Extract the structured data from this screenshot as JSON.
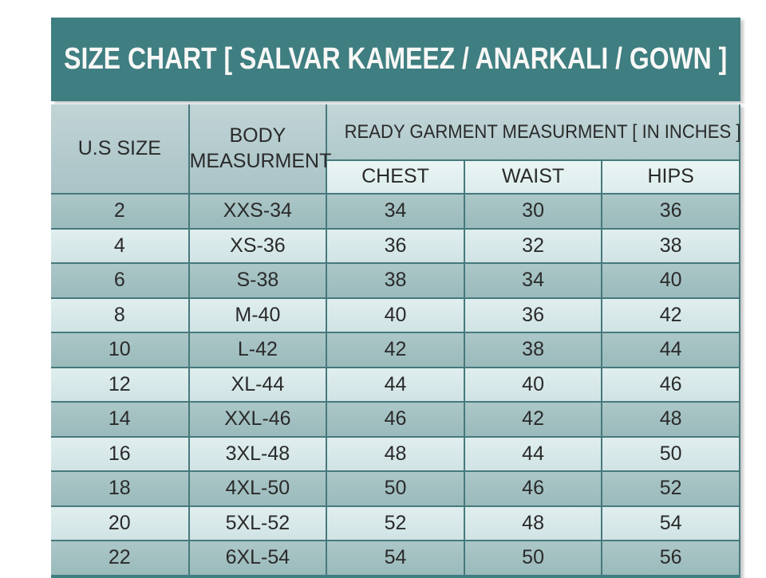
{
  "header": {
    "title": "SIZE CHART [ SALVAR KAMEEZ / ANARKALI / GOWN ]"
  },
  "chart_data": {
    "type": "table",
    "title": "SIZE CHART [ SALVAR KAMEEZ / ANARKALI / GOWN ]",
    "group_header": "READY GARMENT MEASURMENT [ IN INCHES ]",
    "columns": [
      "U.S SIZE",
      "BODY MEASURMENT",
      "CHEST",
      "WAIST",
      "HIPS"
    ],
    "rows": [
      [
        2,
        "XXS-34",
        34,
        30,
        36
      ],
      [
        4,
        "XS-36",
        36,
        32,
        38
      ],
      [
        6,
        "S-38",
        38,
        34,
        40
      ],
      [
        8,
        "M-40",
        40,
        36,
        42
      ],
      [
        10,
        "L-42",
        42,
        38,
        44
      ],
      [
        12,
        "XL-44",
        44,
        40,
        46
      ],
      [
        14,
        "XXL-46",
        46,
        42,
        48
      ],
      [
        16,
        "3XL-48",
        48,
        44,
        50
      ],
      [
        18,
        "4XL-50",
        50,
        46,
        52
      ],
      [
        20,
        "5XL-52",
        52,
        48,
        54
      ],
      [
        22,
        "6XL-54",
        54,
        50,
        56
      ]
    ]
  },
  "colors": {
    "page_bg": "#FFFFFF",
    "title_bar": "#3F7E81",
    "title_text": "#F8F8F6",
    "header_cell": "#A9C3C6",
    "subheader_cell": "#DCECEC",
    "row_dark_top": "#ACC7C8",
    "row_dark": "#9ABABB",
    "row_light_top": "#E0EEEE",
    "row_light": "#D0E3E4",
    "border": "#46797C",
    "text": "#2A2A2A"
  }
}
